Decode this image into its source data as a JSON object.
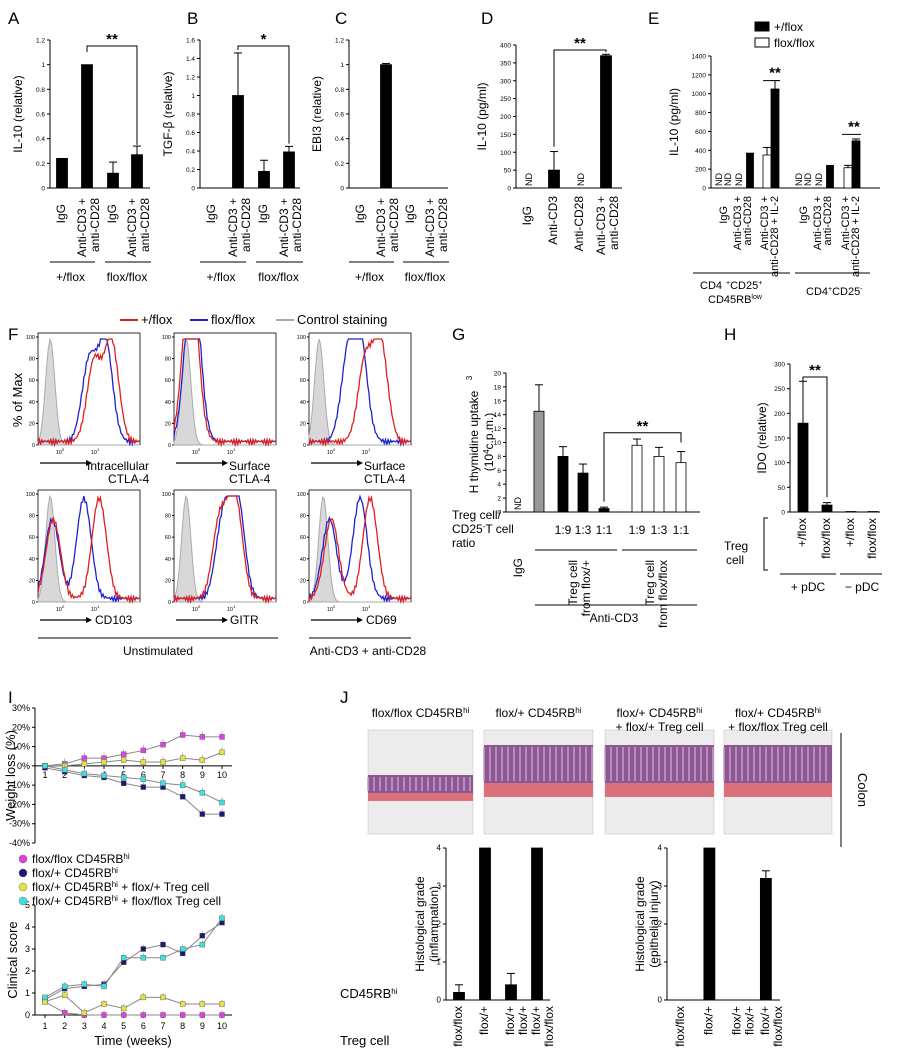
{
  "panel_letters": [
    "A",
    "B",
    "C",
    "D",
    "E",
    "F",
    "G",
    "H",
    "I",
    "J"
  ],
  "texts": {
    "plus_flox": "+/flox",
    "flox_flox": "flox/flox",
    "igg": "IgG",
    "anti_cd3_plus": "Anti-CD3 +",
    "anti_cd28": "anti-CD28",
    "anti_cd3": "Anti-CD3",
    "anti_cd28_cap": "Anti-CD28",
    "anti_cd28_il2": "anti-CD28 + IL-2",
    "nd": "ND",
    "star2": "**",
    "star1": "*",
    "cd4cd25_a": "CD4",
    "cd4cd25_b": "CD25",
    "cd45rb_low": "CD45RB",
    "low": "low",
    "plus_sign": "+",
    "minus_sign": "-",
    "f_legend_plus": "+/flox",
    "f_legend_flox": "flox/flox",
    "f_legend_ctrl": "Control staining",
    "f_yaxis": "% of Max",
    "f_intra": "Intracellular",
    "f_ctla4": "CTLA-4",
    "f_surface": "Surface",
    "f_cd103": "CD103",
    "f_gitr": "GITR",
    "f_cd69": "CD69",
    "f_unstim": "Unstimulated",
    "f_stim": "Anti-CD3 + anti-CD28",
    "g_ylabel1": "H thymidine uptake",
    "g_ylabel_sup": "3",
    "g_ylabel2": "(10",
    "g_ylabel2b": "c.p.m.)",
    "g_ylabel_sup4": "4",
    "g_ratio1": "Treg cell/",
    "g_ratio2": "CD25",
    "g_ratio3": "T cell",
    "g_ratio4": "ratio",
    "g_ratios": [
      "1:9",
      "1:3",
      "1:1",
      "1:9",
      "1:3",
      "1:1"
    ],
    "g_treg_a1": "Treg cell",
    "g_treg_a2": "from flox/+",
    "g_treg_b1": "Treg cell",
    "g_treg_b2": "from flox/flox",
    "g_anti": "Anti-CD3",
    "h_treg": "Treg",
    "h_cell": "cell",
    "h_xt": [
      "+/flox",
      "flox/flox",
      "+/flox",
      "flox/flox"
    ],
    "h_pdc_plus": "+ pDC",
    "h_pdc_minus": "− pDC",
    "i_legend": [
      "flox/flox CD45RB",
      "flox/+ CD45RB",
      "flox/+ CD45RB",
      "flox/+ CD45RB"
    ],
    "i_legend_suffix": [
      "",
      "",
      " + flox/+ Treg cell",
      " + flox/flox Treg cell"
    ],
    "hi": "hi",
    "i_time": "Time (weeks)",
    "j_titles_1": [
      "flox/flox CD45RB",
      "flox/+ CD45RB",
      "flox/+ CD45RB",
      "flox/+ CD45RB"
    ],
    "j_titles_2": [
      "",
      "",
      "+ flox/+ Treg cell",
      "+ flox/flox Treg cell"
    ],
    "j_colon": "Colon",
    "j_cd45": "CD45RB",
    "j_treg": "Treg cell",
    "j_xrow1": [
      "flox/flox",
      "flox/+",
      "flox/+",
      "flox/+"
    ],
    "j_xrow2": [
      "",
      "",
      "flox/+",
      "flox/flox"
    ]
  },
  "chart_data": [
    {
      "panel": "A",
      "type": "bar",
      "ylabel": "IL-10 (relative)",
      "ylim": [
        0,
        1.2
      ],
      "yticks": [
        0,
        0.2,
        0.4,
        0.6,
        0.8,
        1,
        1.2
      ],
      "categories": [
        "IgG",
        "Anti-CD3 + anti-CD28",
        "IgG",
        "Anti-CD3 + anti-CD28"
      ],
      "groups": [
        "+/flox",
        "flox/flox"
      ],
      "values": [
        0.24,
        1.0,
        0.12,
        0.27
      ],
      "errors": [
        0,
        0,
        0.09,
        0.07
      ],
      "significance": "**"
    },
    {
      "panel": "B",
      "type": "bar",
      "ylabel": "TGF-β (relative)",
      "ylim": [
        0,
        1.6
      ],
      "yticks": [
        0,
        0.2,
        0.4,
        0.6,
        0.8,
        1,
        1.2,
        1.4,
        1.6
      ],
      "categories": [
        "IgG",
        "Anti-CD3 + anti-CD28",
        "IgG",
        "Anti-CD3 + anti-CD28"
      ],
      "groups": [
        "+/flox",
        "flox/flox"
      ],
      "values": [
        0,
        1.0,
        0.18,
        0.39
      ],
      "errors": [
        0,
        0.46,
        0.12,
        0.06
      ],
      "significance": "*"
    },
    {
      "panel": "C",
      "type": "bar",
      "ylabel": "EBI3 (relative)",
      "ylim": [
        0,
        1.2
      ],
      "yticks": [
        0,
        0.2,
        0.4,
        0.6,
        0.8,
        1,
        1.2
      ],
      "categories": [
        "IgG",
        "Anti-CD3 + anti-CD28",
        "IgG",
        "Anti-CD3 + anti-CD28"
      ],
      "groups": [
        "+/flox",
        "flox/flox"
      ],
      "values": [
        0,
        1.0,
        0,
        0
      ],
      "errors": [
        0,
        0.01,
        0,
        0
      ]
    },
    {
      "panel": "D",
      "type": "bar",
      "ylabel": "IL-10 (pg/ml)",
      "ylim": [
        0,
        400
      ],
      "yticks": [
        0,
        50,
        100,
        150,
        200,
        250,
        300,
        350,
        400
      ],
      "categories": [
        "IgG",
        "Anti-CD3",
        "Anti-CD28",
        "Anti-CD3 + anti-CD28"
      ],
      "values": [
        null,
        50,
        null,
        370
      ],
      "errors": [
        0,
        52,
        0,
        4
      ],
      "nd": [
        true,
        false,
        true,
        false
      ],
      "significance": "**"
    },
    {
      "panel": "E",
      "type": "bar",
      "ylabel": "IL-10 (pg/ml)",
      "ylim": [
        0,
        1400
      ],
      "yticks": [
        0,
        200,
        400,
        600,
        800,
        1000,
        1200,
        1400
      ],
      "categories": [
        "IgG",
        "Anti-CD3 + anti-CD28",
        "Anti-CD3 + anti-CD28 + IL-2",
        "IgG",
        "Anti-CD3 + anti-CD28",
        "Anti-CD3 + anti-CD28 + IL-2"
      ],
      "groups": [
        "CD4+CD25+ CD45RBlow",
        "CD4+CD25-"
      ],
      "series": [
        {
          "name": "+/flox",
          "values": [
            null,
            370,
            1050,
            null,
            240,
            500
          ],
          "errors": [
            0,
            0,
            90,
            0,
            0,
            20
          ]
        },
        {
          "name": "flox/flox",
          "values": [
            null,
            null,
            350,
            null,
            null,
            215
          ],
          "errors": [
            0,
            0,
            80,
            0,
            0,
            25
          ]
        }
      ],
      "nd": [
        "both",
        "flox/flox",
        "",
        "both",
        "flox/flox",
        ""
      ],
      "significance": [
        "**",
        "**"
      ]
    },
    {
      "panel": "F",
      "type": "histogram_overlay",
      "series": [
        "+/flox",
        "flox/flox",
        "Control staining"
      ],
      "markers": [
        "Intracellular CTLA-4",
        "Surface CTLA-4",
        "Surface CTLA-4",
        "CD103",
        "GITR",
        "CD69"
      ],
      "conditions": [
        "Unstimulated",
        "Unstimulated",
        "Anti-CD3 + anti-CD28",
        "Unstimulated",
        "Unstimulated",
        "Anti-CD3 + anti-CD28"
      ],
      "yticks": [
        0,
        20,
        40,
        60,
        80,
        100
      ],
      "ylabel": "% of Max"
    },
    {
      "panel": "G",
      "type": "bar",
      "ylabel": "3H thymidine uptake (10^4 c.p.m.)",
      "ylim": [
        0,
        20
      ],
      "yticks": [
        0,
        2,
        4,
        6,
        8,
        10,
        12,
        14,
        16,
        18,
        20
      ],
      "categories": [
        "IgG",
        "Anti-CD3 alone",
        "1:9",
        "1:3",
        "1:1",
        "1:9",
        "1:3",
        "1:1"
      ],
      "values": [
        null,
        14.5,
        8.0,
        5.6,
        0.5,
        9.6,
        8.0,
        7.1
      ],
      "errors": [
        0,
        3.8,
        1.4,
        1.3,
        0.2,
        0.9,
        1.3,
        1.6
      ],
      "colors": [
        "none",
        "#999999",
        "#000000",
        "#000000",
        "#000000",
        "#ffffff",
        "#ffffff",
        "#ffffff"
      ],
      "significance": "**"
    },
    {
      "panel": "H",
      "type": "bar",
      "ylabel": "IDO (relative)",
      "ylim": [
        0,
        300
      ],
      "yticks": [
        0,
        50,
        100,
        150,
        200,
        250,
        300
      ],
      "categories": [
        "+/flox",
        "flox/flox",
        "+/flox",
        "flox/flox"
      ],
      "groups": [
        "+ pDC",
        "− pDC"
      ],
      "values": [
        180,
        14,
        1,
        1
      ],
      "errors": [
        85,
        5,
        0,
        0
      ],
      "significance": "**"
    },
    {
      "panel": "I-top",
      "type": "line",
      "ylabel": "Weight loss (%)",
      "ylim": [
        -40,
        30
      ],
      "yticks": [
        -40,
        -30,
        -20,
        -10,
        0,
        10,
        20,
        30
      ],
      "x": [
        1,
        2,
        3,
        4,
        5,
        6,
        7,
        8,
        9,
        10
      ],
      "series": [
        {
          "name": "flox/flox CD45RBhi",
          "color": "#e040e0",
          "values": [
            0,
            1,
            4,
            4,
            6,
            8,
            11,
            16,
            15,
            15
          ]
        },
        {
          "name": "flox/+ CD45RBhi",
          "color": "#1a1a6e",
          "values": [
            -1,
            -3,
            -5,
            -6,
            -9,
            -11,
            -11,
            -16,
            -25,
            -25
          ]
        },
        {
          "name": "flox/+ CD45RBhi + flox/+ Treg cell",
          "color": "#e6e040",
          "values": [
            0,
            0,
            1,
            2,
            3,
            2,
            2,
            4,
            3,
            7
          ]
        },
        {
          "name": "flox/+ CD45RBhi + flox/flox Treg cell",
          "color": "#40e0e0",
          "values": [
            0,
            -2,
            -4,
            -5,
            -6,
            -7,
            -9,
            -10,
            -14,
            -19
          ]
        }
      ]
    },
    {
      "panel": "I-bottom",
      "type": "line",
      "ylabel": "Clinical score",
      "xlabel": "Time (weeks)",
      "ylim": [
        0,
        5
      ],
      "yticks": [
        0,
        1,
        2,
        3,
        4,
        5
      ],
      "x": [
        1,
        2,
        3,
        4,
        5,
        6,
        7,
        8,
        9,
        10
      ],
      "series": [
        {
          "name": "flox/flox CD45RBhi",
          "color": "#e040e0",
          "values": [
            0.6,
            0.1,
            0,
            0,
            0,
            0,
            0,
            0,
            0,
            0
          ]
        },
        {
          "name": "flox/+ CD45RBhi",
          "color": "#1a1a6e",
          "values": [
            0.7,
            1.2,
            1.3,
            1.4,
            2.4,
            3,
            3.2,
            2.8,
            3.6,
            4.2
          ]
        },
        {
          "name": "flox/+ CD45RBhi + flox/+ Treg cell",
          "color": "#e6e040",
          "values": [
            0.6,
            0.9,
            0.1,
            0.5,
            0.3,
            0.8,
            0.8,
            0.5,
            0.5,
            0.5
          ]
        },
        {
          "name": "flox/+ CD45RBhi + flox/flox Treg cell",
          "color": "#40e0e0",
          "values": [
            0.8,
            1.3,
            1.4,
            1.3,
            2.6,
            2.6,
            2.6,
            3.0,
            3.2,
            4.4
          ]
        }
      ]
    },
    {
      "panel": "J-left",
      "type": "bar",
      "ylabel": "Histological grade (inflammation)",
      "ylim": [
        0,
        4
      ],
      "yticks": [
        0,
        1,
        2,
        3,
        4
      ],
      "categories": [
        "flox/flox",
        "flox/+",
        "flox/+ + flox/+",
        "flox/+ + flox/flox"
      ],
      "values": [
        0.2,
        4,
        0.4,
        4
      ],
      "errors": [
        0.2,
        0,
        0.3,
        0
      ]
    },
    {
      "panel": "J-right",
      "type": "bar",
      "ylabel": "Histological grade (epithelial injury)",
      "ylim": [
        0,
        4
      ],
      "yticks": [
        0,
        1,
        2,
        3,
        4
      ],
      "categories": [
        "flox/flox",
        "flox/+",
        "flox/+ + flox/+",
        "flox/+ + flox/flox"
      ],
      "values": [
        0,
        4,
        0,
        3.2
      ],
      "errors": [
        0,
        0,
        0,
        0.2
      ]
    }
  ]
}
